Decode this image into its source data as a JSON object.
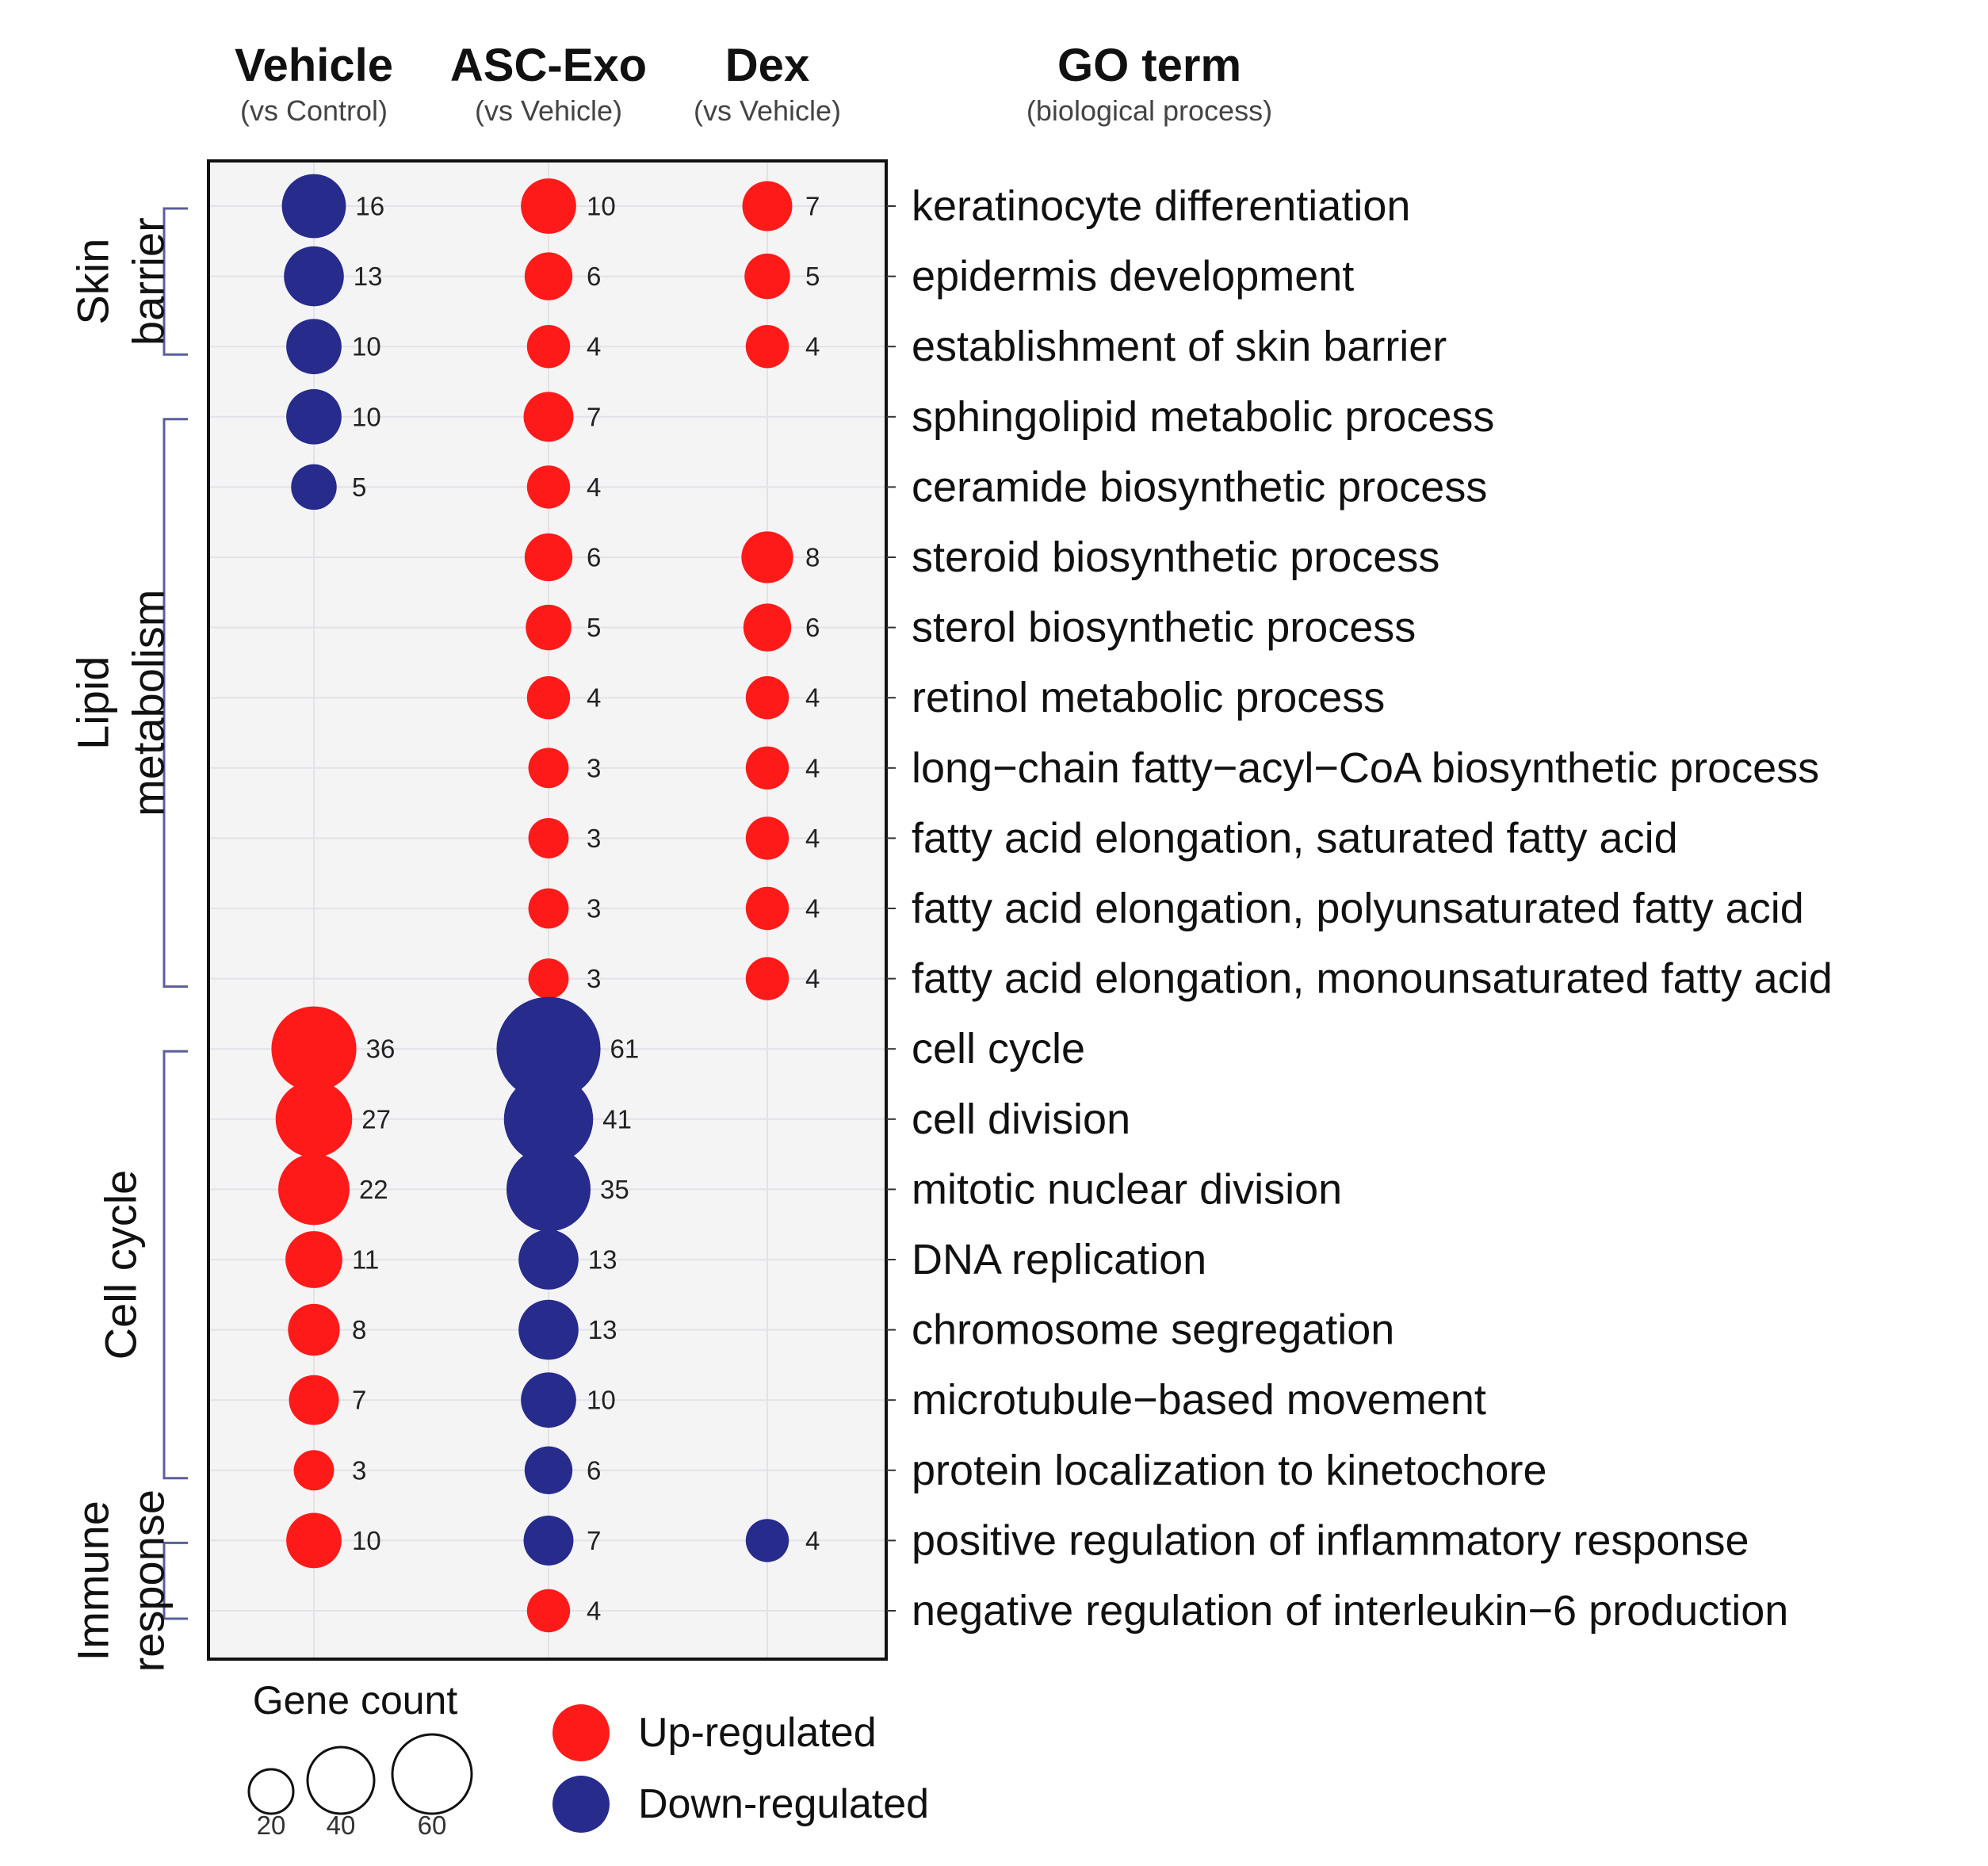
{
  "chart_data": {
    "type": "bubble-dotplot",
    "columns": [
      {
        "title": "Vehicle",
        "subtitle": "(vs Control)"
      },
      {
        "title": "ASC-Exo",
        "subtitle": "(vs Vehicle)"
      },
      {
        "title": "Dex",
        "subtitle": "(vs Vehicle)"
      }
    ],
    "term_header": {
      "title": "GO term",
      "subtitle": "(biological process)"
    },
    "rows": [
      {
        "term": "keratinocyte differentiation",
        "cells": [
          {
            "count": 16,
            "dir": "down"
          },
          {
            "count": 10,
            "dir": "up"
          },
          {
            "count": 7,
            "dir": "up"
          }
        ]
      },
      {
        "term": "epidermis development",
        "cells": [
          {
            "count": 13,
            "dir": "down"
          },
          {
            "count": 6,
            "dir": "up"
          },
          {
            "count": 5,
            "dir": "up"
          }
        ]
      },
      {
        "term": "establishment of skin barrier",
        "cells": [
          {
            "count": 10,
            "dir": "down"
          },
          {
            "count": 4,
            "dir": "up"
          },
          {
            "count": 4,
            "dir": "up"
          }
        ]
      },
      {
        "term": "sphingolipid metabolic process",
        "cells": [
          {
            "count": 10,
            "dir": "down"
          },
          {
            "count": 7,
            "dir": "up"
          },
          null
        ]
      },
      {
        "term": "ceramide biosynthetic process",
        "cells": [
          {
            "count": 5,
            "dir": "down"
          },
          {
            "count": 4,
            "dir": "up"
          },
          null
        ]
      },
      {
        "term": "steroid biosynthetic process",
        "cells": [
          null,
          {
            "count": 6,
            "dir": "up"
          },
          {
            "count": 8,
            "dir": "up"
          }
        ]
      },
      {
        "term": "sterol biosynthetic process",
        "cells": [
          null,
          {
            "count": 5,
            "dir": "up"
          },
          {
            "count": 6,
            "dir": "up"
          }
        ]
      },
      {
        "term": "retinol metabolic process",
        "cells": [
          null,
          {
            "count": 4,
            "dir": "up"
          },
          {
            "count": 4,
            "dir": "up"
          }
        ]
      },
      {
        "term": "long−chain fatty−acyl−CoA biosynthetic process",
        "cells": [
          null,
          {
            "count": 3,
            "dir": "up"
          },
          {
            "count": 4,
            "dir": "up"
          }
        ]
      },
      {
        "term": "fatty acid elongation, saturated fatty acid",
        "cells": [
          null,
          {
            "count": 3,
            "dir": "up"
          },
          {
            "count": 4,
            "dir": "up"
          }
        ]
      },
      {
        "term": "fatty acid elongation, polyunsaturated fatty acid",
        "cells": [
          null,
          {
            "count": 3,
            "dir": "up"
          },
          {
            "count": 4,
            "dir": "up"
          }
        ]
      },
      {
        "term": "fatty acid elongation, monounsaturated fatty acid",
        "cells": [
          null,
          {
            "count": 3,
            "dir": "up"
          },
          {
            "count": 4,
            "dir": "up"
          }
        ]
      },
      {
        "term": "cell cycle",
        "cells": [
          {
            "count": 36,
            "dir": "up"
          },
          {
            "count": 61,
            "dir": "down"
          },
          null
        ]
      },
      {
        "term": "cell division",
        "cells": [
          {
            "count": 27,
            "dir": "up"
          },
          {
            "count": 41,
            "dir": "down"
          },
          null
        ]
      },
      {
        "term": "mitotic nuclear division",
        "cells": [
          {
            "count": 22,
            "dir": "up"
          },
          {
            "count": 35,
            "dir": "down"
          },
          null
        ]
      },
      {
        "term": "DNA replication",
        "cells": [
          {
            "count": 11,
            "dir": "up"
          },
          {
            "count": 13,
            "dir": "down"
          },
          null
        ]
      },
      {
        "term": "chromosome segregation",
        "cells": [
          {
            "count": 8,
            "dir": "up"
          },
          {
            "count": 13,
            "dir": "down"
          },
          null
        ]
      },
      {
        "term": "microtubule−based movement",
        "cells": [
          {
            "count": 7,
            "dir": "up"
          },
          {
            "count": 10,
            "dir": "down"
          },
          null
        ]
      },
      {
        "term": "protein localization to kinetochore",
        "cells": [
          {
            "count": 3,
            "dir": "up"
          },
          {
            "count": 6,
            "dir": "down"
          },
          null
        ]
      },
      {
        "term": "positive regulation of inflammatory response",
        "cells": [
          {
            "count": 10,
            "dir": "up"
          },
          {
            "count": 7,
            "dir": "down"
          },
          {
            "count": 4,
            "dir": "down"
          }
        ]
      },
      {
        "term": "negative regulation of interleukin−6 production",
        "cells": [
          null,
          {
            "count": 4,
            "dir": "up"
          },
          null
        ]
      }
    ],
    "groups": [
      {
        "lines": [
          "Skin",
          "barrier"
        ],
        "first_row": 0,
        "last_row": 2
      },
      {
        "lines": [
          "Lipid",
          "metabolism"
        ],
        "first_row": 3,
        "last_row": 11
      },
      {
        "lines": [
          "Cell cycle"
        ],
        "first_row": 12,
        "last_row": 18
      },
      {
        "lines": [
          "Immune",
          "response"
        ],
        "first_row": 19,
        "last_row": 20
      }
    ],
    "legend": {
      "size_title": "Gene count",
      "sizes": [
        20,
        40,
        60
      ],
      "up_label": "Up-regulated",
      "down_label": "Down-regulated"
    },
    "colors": {
      "up": "#ff1a1a",
      "down": "#262b8c",
      "panel": "#f4f4f4",
      "grid": "#e2e2e8",
      "bracket": "#5a5f9c"
    }
  }
}
